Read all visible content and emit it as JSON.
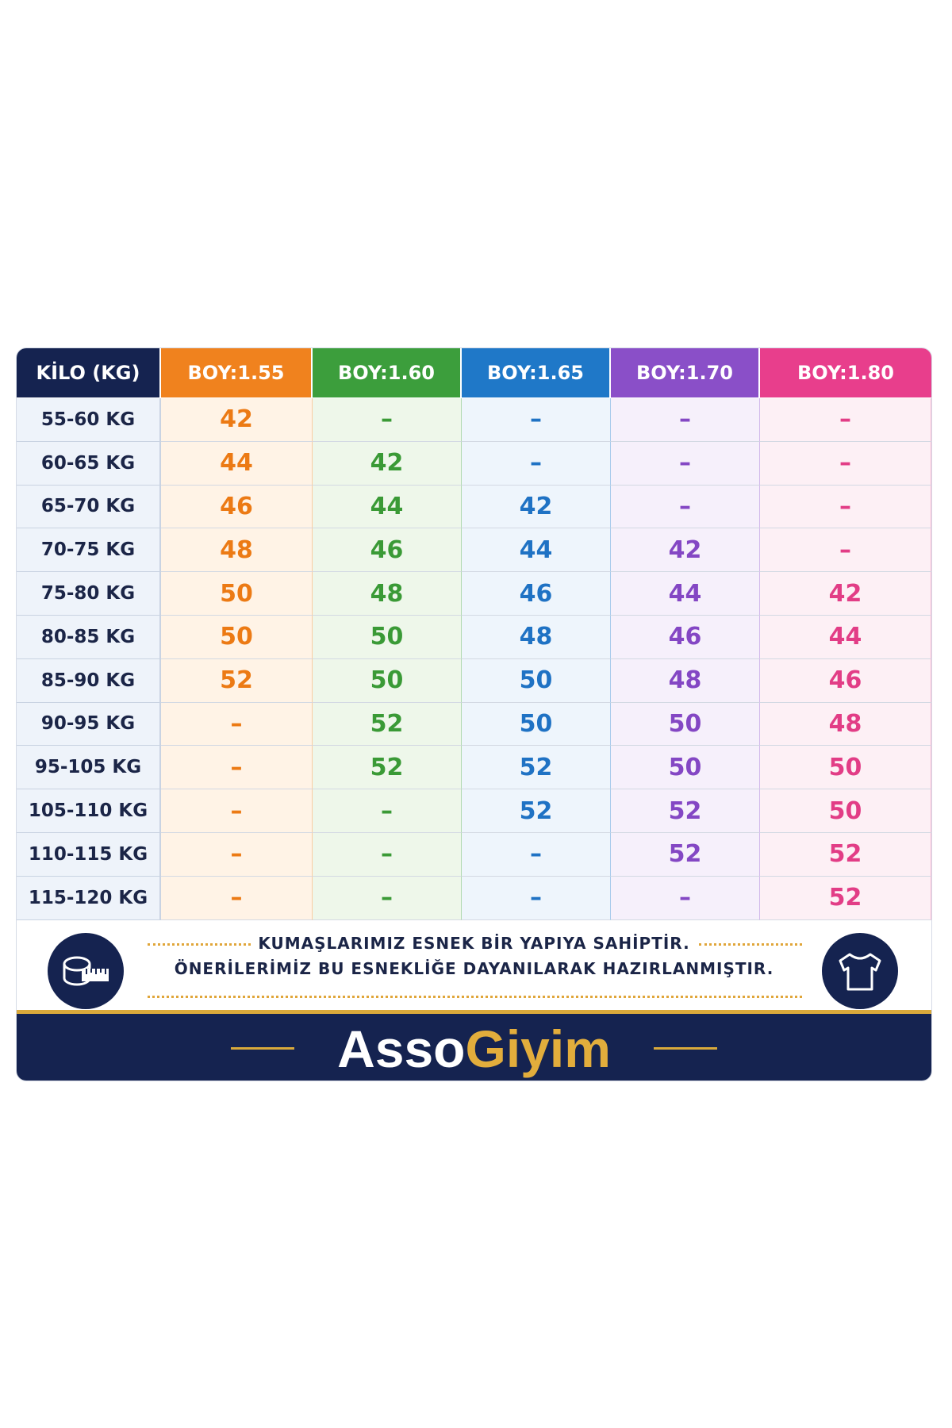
{
  "table": {
    "header": [
      "KİLO (KG)",
      "BOY:1.55",
      "BOY:1.60",
      "BOY:1.65",
      "BOY:1.70",
      "BOY:1.80"
    ],
    "rows": [
      [
        "55-60 KG",
        "42",
        "–",
        "–",
        "–",
        "–"
      ],
      [
        "60-65 KG",
        "44",
        "42",
        "–",
        "–",
        "–"
      ],
      [
        "65-70 KG",
        "46",
        "44",
        "42",
        "–",
        "–"
      ],
      [
        "70-75 KG",
        "48",
        "46",
        "44",
        "42",
        "–"
      ],
      [
        "75-80 KG",
        "50",
        "48",
        "46",
        "44",
        "42"
      ],
      [
        "80-85 KG",
        "50",
        "50",
        "48",
        "46",
        "44"
      ],
      [
        "85-90 KG",
        "52",
        "50",
        "50",
        "48",
        "46"
      ],
      [
        "90-95 KG",
        "–",
        "52",
        "50",
        "50",
        "48"
      ],
      [
        "95-105 KG",
        "–",
        "52",
        "52",
        "50",
        "50"
      ],
      [
        "105-110 KG",
        "–",
        "–",
        "52",
        "52",
        "50"
      ],
      [
        "110-115 KG",
        "–",
        "–",
        "–",
        "52",
        "52"
      ],
      [
        "115-120 KG",
        "–",
        "–",
        "–",
        "–",
        "52"
      ]
    ]
  },
  "note": {
    "lines": [
      "KUMAŞLARIMIZ ESNEK BİR YAPIYA SAHİPTİR.",
      "ÖNERİLERİMİZ BU ESNEKLİĞE DAYANILARAK HAZIRLANMIŞTIR."
    ]
  },
  "brand": {
    "part1": "Asso",
    "part2": "Giyim"
  }
}
